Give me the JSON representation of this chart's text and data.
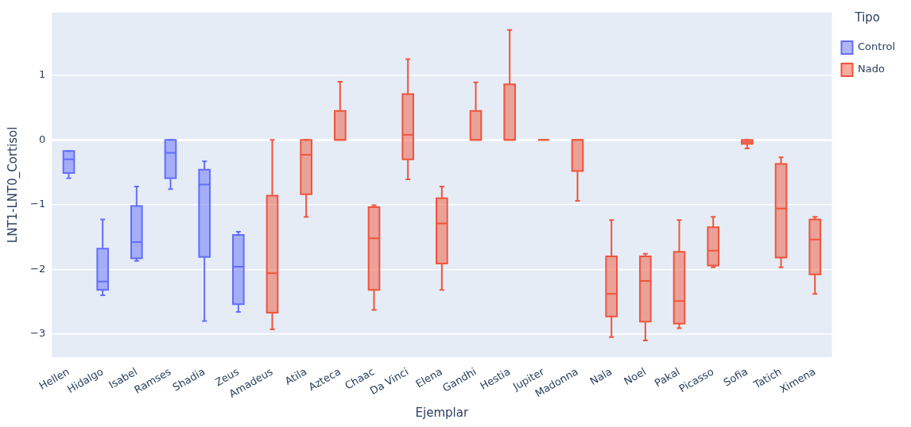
{
  "chart_data": {
    "type": "box",
    "xlabel": "Ejemplar",
    "ylabel": "LNT1-LNT0_Cortisol",
    "legend_title": "Tipo",
    "categories": [
      "Hellen",
      "Hidalgo",
      "Isabel",
      "Ramses",
      "Shadia",
      "Zeus",
      "Amadeus",
      "Atila",
      "Azteca",
      "Chaac",
      "Da Vinci",
      "Elena",
      "Gandhi",
      "Hestia",
      "Jupiter",
      "Madonna",
      "Nala",
      "Noel",
      "Pakal",
      "Picasso",
      "Sofia",
      "Tatich",
      "Ximena"
    ],
    "series": [
      {
        "name": "Control",
        "color": "#636efa",
        "boxes": [
          {
            "low": -0.59,
            "q1": -0.51,
            "median": -0.3,
            "q3": -0.17,
            "high": -0.17
          },
          {
            "low": -2.4,
            "q1": -2.32,
            "median": -2.19,
            "q3": -1.68,
            "high": -1.23
          },
          {
            "low": -1.87,
            "q1": -1.83,
            "median": -1.58,
            "q3": -1.02,
            "high": -0.72
          },
          {
            "low": -0.76,
            "q1": -0.59,
            "median": -0.2,
            "q3": 0,
            "high": 0
          },
          {
            "low": -2.8,
            "q1": -1.81,
            "median": -0.69,
            "q3": -0.46,
            "high": -0.33
          },
          {
            "low": -2.66,
            "q1": -2.54,
            "median": -1.96,
            "q3": -1.47,
            "high": -1.42
          },
          null,
          null,
          null,
          null,
          null,
          null,
          null,
          null,
          null,
          null,
          null,
          null,
          null,
          null,
          null,
          null,
          null
        ]
      },
      {
        "name": "Nado",
        "color": "#ef553b",
        "boxes": [
          null,
          null,
          null,
          null,
          null,
          null,
          {
            "low": -2.93,
            "q1": -2.67,
            "median": -2.06,
            "q3": -0.86,
            "high": 0
          },
          {
            "low": -1.19,
            "q1": -0.84,
            "median": -0.23,
            "q3": 0,
            "high": 0
          },
          {
            "low": 0,
            "q1": 0,
            "median": 0,
            "q3": 0.45,
            "high": 0.9
          },
          {
            "low": -2.63,
            "q1": -2.32,
            "median": -1.52,
            "q3": -1.04,
            "high": -1.01
          },
          {
            "low": -0.61,
            "q1": -0.3,
            "median": 0.08,
            "q3": 0.71,
            "high": 1.25
          },
          {
            "low": -2.32,
            "q1": -1.91,
            "median": -1.29,
            "q3": -0.9,
            "high": -0.72
          },
          {
            "low": 0,
            "q1": 0,
            "median": 0,
            "q3": 0.45,
            "high": 0.89
          },
          {
            "low": 0,
            "q1": 0,
            "median": 0,
            "q3": 0.86,
            "high": 1.7
          },
          {
            "low": 0,
            "q1": 0,
            "median": 0,
            "q3": 0,
            "high": 0
          },
          {
            "low": -0.94,
            "q1": -0.48,
            "median": 0,
            "q3": 0,
            "high": 0
          },
          {
            "low": -3.05,
            "q1": -2.73,
            "median": -2.38,
            "q3": -1.8,
            "high": -1.24
          },
          {
            "low": -3.1,
            "q1": -2.81,
            "median": -2.18,
            "q3": -1.8,
            "high": -1.76
          },
          {
            "low": -2.91,
            "q1": -2.84,
            "median": -2.49,
            "q3": -1.73,
            "high": -1.24
          },
          {
            "low": -1.97,
            "q1": -1.94,
            "median": -1.71,
            "q3": -1.35,
            "high": -1.19
          },
          {
            "low": -0.13,
            "q1": -0.06,
            "median": -0.03,
            "q3": 0,
            "high": 0
          },
          {
            "low": -1.97,
            "q1": -1.82,
            "median": -1.06,
            "q3": -0.37,
            "high": -0.27
          },
          {
            "low": -2.38,
            "q1": -2.08,
            "median": -1.54,
            "q3": -1.23,
            "high": -1.19
          }
        ]
      }
    ],
    "ylim": [
      -3.36,
      1.97
    ],
    "yticks": [
      -3,
      -2,
      -1,
      0,
      1
    ],
    "grid": "y",
    "legend": "right"
  }
}
